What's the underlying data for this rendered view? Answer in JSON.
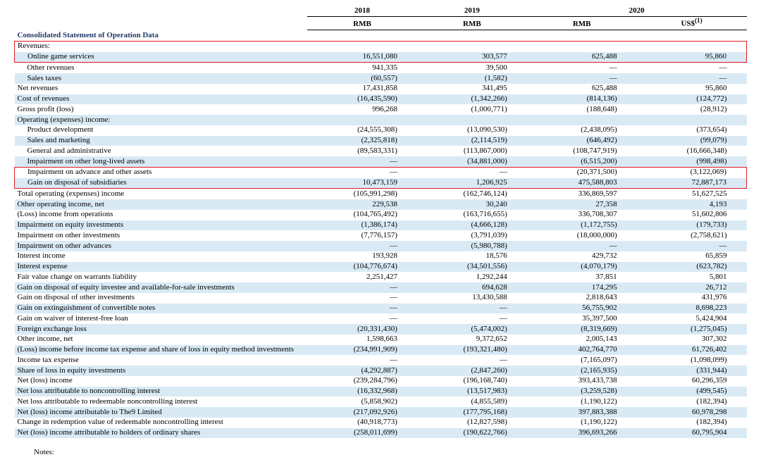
{
  "header": {
    "years": [
      "2018",
      "2019",
      "2020"
    ],
    "units": [
      "RMB",
      "RMB",
      "RMB",
      "US$"
    ],
    "us_super": "(1)"
  },
  "section_title": "Consolidated Statement of Operation Data",
  "rows": [
    {
      "label": "Revenues:",
      "indent": 0,
      "stripe": false,
      "vals": [
        "",
        "",
        "",
        ""
      ],
      "hl": "top"
    },
    {
      "label": "Online game services",
      "indent": 1,
      "stripe": true,
      "vals": [
        "16,551,080",
        "303,577",
        "625,488",
        "95,860"
      ],
      "hl": "bottom"
    },
    {
      "label": "Other revenues",
      "indent": 1,
      "stripe": false,
      "vals": [
        "941,335",
        "39,500",
        "—",
        "—"
      ]
    },
    {
      "label": "Sales taxes",
      "indent": 1,
      "stripe": true,
      "vals": [
        "(60,557)",
        "(1,582)",
        "—",
        "—"
      ]
    },
    {
      "label": "Net revenues",
      "indent": 0,
      "stripe": false,
      "vals": [
        "17,431,858",
        "341,495",
        "625,488",
        "95,860"
      ]
    },
    {
      "label": "Cost of revenues",
      "indent": 0,
      "stripe": true,
      "vals": [
        "(16,435,590)",
        "(1,342,266)",
        "(814,136)",
        "(124,772)"
      ]
    },
    {
      "label": "Gross profit (loss)",
      "indent": 0,
      "stripe": false,
      "vals": [
        "996,268",
        "(1,000,771)",
        "(188,648)",
        "(28,912)"
      ]
    },
    {
      "label": "Operating (expenses) income:",
      "indent": 0,
      "stripe": true,
      "vals": [
        "",
        "",
        "",
        ""
      ]
    },
    {
      "label": "Product development",
      "indent": 1,
      "stripe": false,
      "vals": [
        "(24,555,308)",
        "(13,090,530)",
        "(2,438,095)",
        "(373,654)"
      ]
    },
    {
      "label": "Sales and marketing",
      "indent": 1,
      "stripe": true,
      "vals": [
        "(2,325,818)",
        "(2,114,519)",
        "(646,492)",
        "(99,079)"
      ]
    },
    {
      "label": "General and administrative",
      "indent": 1,
      "stripe": false,
      "vals": [
        "(89,583,331)",
        "(113,867,000)",
        "(108,747,919)",
        "(16,666,348)"
      ]
    },
    {
      "label": "Impairment on other long-lived assets",
      "indent": 1,
      "stripe": true,
      "vals": [
        "—",
        "(34,881,000)",
        "(6,515,200)",
        "(998,498)"
      ]
    },
    {
      "label": "Impairment on advance and other assets",
      "indent": 1,
      "stripe": false,
      "vals": [
        "—",
        "—",
        "(20,371,500)",
        "(3,122,069)"
      ],
      "hl": "top"
    },
    {
      "label": "Gain on disposal of subsidiaries",
      "indent": 1,
      "stripe": true,
      "vals": [
        "10,473,159",
        "1,206,925",
        "475,588,803",
        "72,887,173"
      ],
      "hl": "bottom"
    },
    {
      "label": "Total operating (expenses) income",
      "indent": 0,
      "stripe": false,
      "vals": [
        "(105,991,298)",
        "(162,746,124)",
        "336,869,597",
        "51,627,525"
      ]
    },
    {
      "label": "Other operating income, net",
      "indent": 0,
      "stripe": true,
      "vals": [
        "229,538",
        "30,240",
        "27,358",
        "4,193"
      ]
    },
    {
      "label": "(Loss) income from operations",
      "indent": 0,
      "stripe": false,
      "vals": [
        "(104,765,492)",
        "(163,716,655)",
        "336,708,307",
        "51,602,806"
      ]
    },
    {
      "label": "Impairment on equity investments",
      "indent": 0,
      "stripe": true,
      "vals": [
        "(1,386,174)",
        "(4,666,128)",
        "(1,172,755)",
        "(179,733)"
      ]
    },
    {
      "label": "Impairment on other investments",
      "indent": 0,
      "stripe": false,
      "vals": [
        "(7,776,157)",
        "(3,791,039)",
        "(18,000,000)",
        "(2,758,621)"
      ]
    },
    {
      "label": "Impairment on other advances",
      "indent": 0,
      "stripe": true,
      "vals": [
        "—",
        "(5,980,788)",
        "—",
        "—"
      ]
    },
    {
      "label": "Interest income",
      "indent": 0,
      "stripe": false,
      "vals": [
        "193,928",
        "18,576",
        "429,732",
        "65,859"
      ]
    },
    {
      "label": "Interest expense",
      "indent": 0,
      "stripe": true,
      "vals": [
        "(104,776,674)",
        "(34,501,556)",
        "(4,070,179)",
        "(623,782)"
      ]
    },
    {
      "label": "Fair value change on warrants liability",
      "indent": 0,
      "stripe": false,
      "vals": [
        "2,251,427",
        "1,292,244",
        "37,851",
        "5,801"
      ]
    },
    {
      "label": "Gain on disposal of equity investee and available-for-sale investments",
      "indent": 0,
      "stripe": true,
      "vals": [
        "—",
        "694,628",
        "174,295",
        "26,712"
      ]
    },
    {
      "label": "Gain on disposal of other investments",
      "indent": 0,
      "stripe": false,
      "vals": [
        "—",
        "13,430,588",
        "2,818,643",
        "431,976"
      ]
    },
    {
      "label": "Gain on extinguishment of convertible notes",
      "indent": 0,
      "stripe": true,
      "vals": [
        "—",
        "—",
        "56,755,902",
        "8,698,223"
      ]
    },
    {
      "label": "Gain on waiver of interest-free loan",
      "indent": 0,
      "stripe": false,
      "vals": [
        "—",
        "—",
        "35,397,500",
        "5,424,904"
      ]
    },
    {
      "label": "Foreign exchange loss",
      "indent": 0,
      "stripe": true,
      "vals": [
        "(20,331,430)",
        "(5,474,002)",
        "(8,319,669)",
        "(1,275,045)"
      ]
    },
    {
      "label": "Other income, net",
      "indent": 0,
      "stripe": false,
      "vals": [
        "1,598,663",
        "9,372,652",
        "2,005,143",
        "307,302"
      ]
    },
    {
      "label": "(Loss) income before income tax expense and share of loss in equity method investments",
      "indent": 0,
      "stripe": true,
      "vals": [
        "(234,991,909)",
        "(193,321,480)",
        "402,764,770",
        "61,726,402"
      ]
    },
    {
      "label": "Income tax expense",
      "indent": 0,
      "stripe": false,
      "vals": [
        "—",
        "—",
        "(7,165,097)",
        "(1,098,099)"
      ]
    },
    {
      "label": "Share of loss in equity investments",
      "indent": 0,
      "stripe": true,
      "vals": [
        "(4,292,887)",
        "(2,847,260)",
        "(2,165,935)",
        "(331,944)"
      ]
    },
    {
      "label": "Net (loss) income",
      "indent": 0,
      "stripe": false,
      "vals": [
        "(239,284,796)",
        "(196,168,740)",
        "393,433,738",
        "60,296,359"
      ]
    },
    {
      "label": "Net loss attributable to noncontrolling interest",
      "indent": 0,
      "stripe": true,
      "vals": [
        "(16,332,968)",
        "(13,517,983)",
        "(3,259,528)",
        "(499,545)"
      ]
    },
    {
      "label": "Net loss attributable to redeemable noncontrolling interest",
      "indent": 0,
      "stripe": false,
      "vals": [
        "(5,858,902)",
        "(4,855,589)",
        "(1,190,122)",
        "(182,394)"
      ]
    },
    {
      "label": "Net (loss) income attributable to The9 Limited",
      "indent": 0,
      "stripe": true,
      "vals": [
        "(217,092,926)",
        "(177,795,168)",
        "397,883,388",
        "60,978,298"
      ]
    },
    {
      "label": "Change in redemption value of redeemable noncontrolling interest",
      "indent": 0,
      "stripe": false,
      "vals": [
        "(40,918,773)",
        "(12,827,598)",
        "(1,190,122)",
        "(182,394)"
      ]
    },
    {
      "label": "Net (loss) income attributable to holders of ordinary shares",
      "indent": 0,
      "stripe": true,
      "vals": [
        "(258,011,699)",
        "(190,622,766)",
        "396,693,266",
        "60,795,904"
      ]
    }
  ],
  "notes_label": "Notes:"
}
